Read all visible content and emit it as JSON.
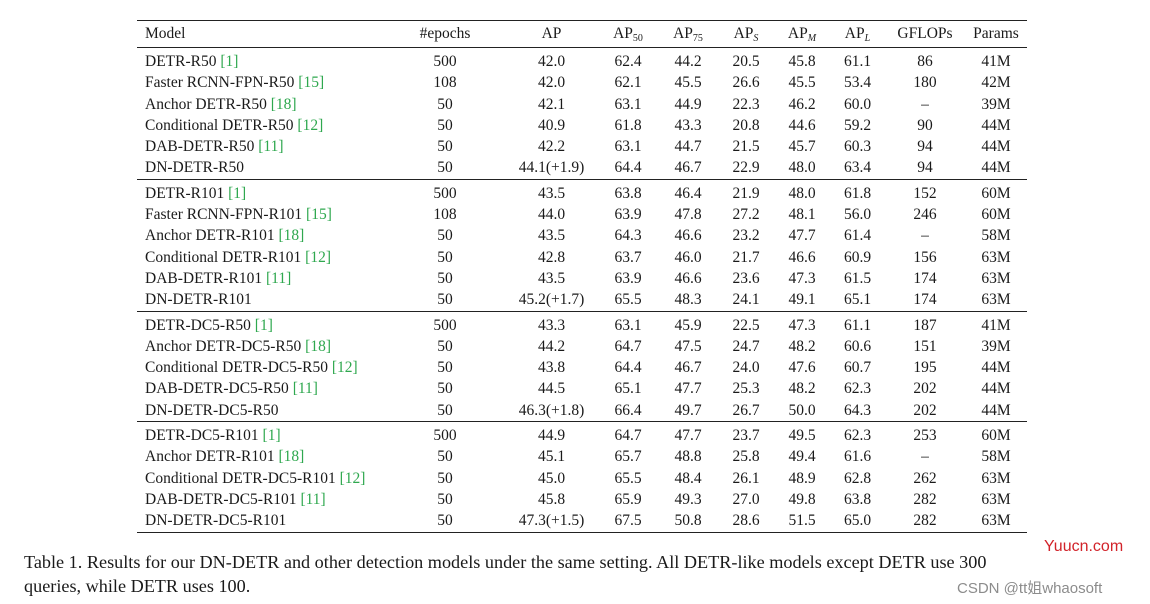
{
  "table": {
    "headers": {
      "model": "Model",
      "epochs": "#epochs",
      "ap": "AP",
      "ap50": "AP",
      "ap50_sub": "50",
      "ap75": "AP",
      "ap75_sub": "75",
      "aps": "AP",
      "aps_sub": "S",
      "apm": "AP",
      "apm_sub": "M",
      "apl": "AP",
      "apl_sub": "L",
      "gflops": "GFLOPs",
      "params": "Params"
    },
    "groups": [
      {
        "rows": [
          {
            "model": "DETR-R50 ",
            "ref": "[1]",
            "epochs": "500",
            "ap": "42.0",
            "ap50": "62.4",
            "ap75": "44.2",
            "aps": "20.5",
            "apm": "45.8",
            "apl": "61.1",
            "gflops": "86",
            "params": "41M"
          },
          {
            "model": "Faster RCNN-FPN-R50 ",
            "ref": "[15]",
            "epochs": "108",
            "ap": "42.0",
            "ap50": "62.1",
            "ap75": "45.5",
            "aps": "26.6",
            "apm": "45.5",
            "apl": "53.4",
            "gflops": "180",
            "params": "42M"
          },
          {
            "model": "Anchor DETR-R50 ",
            "ref": "[18]",
            "epochs": "50",
            "ap": "42.1",
            "ap50": "63.1",
            "ap75": "44.9",
            "aps": "22.3",
            "apm": "46.2",
            "apl": "60.0",
            "gflops": "–",
            "params": "39M"
          },
          {
            "model": "Conditional DETR-R50 ",
            "ref": "[12]",
            "epochs": "50",
            "ap": "40.9",
            "ap50": "61.8",
            "ap75": "43.3",
            "aps": "20.8",
            "apm": "44.6",
            "apl": "59.2",
            "gflops": "90",
            "params": "44M"
          },
          {
            "model": "DAB-DETR-R50 ",
            "ref": "[11]",
            "epochs": "50",
            "ap": "42.2",
            "ap50": "63.1",
            "ap75": "44.7",
            "aps": "21.5",
            "apm": "45.7",
            "apl": "60.3",
            "gflops": "94",
            "params": "44M"
          },
          {
            "model": "DN-DETR-R50",
            "ref": "",
            "epochs": "50",
            "ap": "44.1(+1.9)",
            "ap50": "64.4",
            "ap75": "46.7",
            "aps": "22.9",
            "apm": "48.0",
            "apl": "63.4",
            "gflops": "94",
            "params": "44M"
          }
        ]
      },
      {
        "rows": [
          {
            "model": "DETR-R101 ",
            "ref": "[1]",
            "epochs": "500",
            "ap": "43.5",
            "ap50": "63.8",
            "ap75": "46.4",
            "aps": "21.9",
            "apm": "48.0",
            "apl": "61.8",
            "gflops": "152",
            "params": "60M"
          },
          {
            "model": "Faster RCNN-FPN-R101 ",
            "ref": "[15]",
            "epochs": "108",
            "ap": "44.0",
            "ap50": "63.9",
            "ap75": "47.8",
            "aps": "27.2",
            "apm": "48.1",
            "apl": "56.0",
            "gflops": "246",
            "params": "60M"
          },
          {
            "model": "Anchor DETR-R101 ",
            "ref": "[18]",
            "epochs": "50",
            "ap": "43.5",
            "ap50": "64.3",
            "ap75": "46.6",
            "aps": "23.2",
            "apm": "47.7",
            "apl": "61.4",
            "gflops": "–",
            "params": "58M"
          },
          {
            "model": "Conditional DETR-R101 ",
            "ref": "[12]",
            "epochs": "50",
            "ap": "42.8",
            "ap50": "63.7",
            "ap75": "46.0",
            "aps": "21.7",
            "apm": "46.6",
            "apl": "60.9",
            "gflops": "156",
            "params": "63M"
          },
          {
            "model": "DAB-DETR-R101 ",
            "ref": "[11]",
            "epochs": "50",
            "ap": "43.5",
            "ap50": "63.9",
            "ap75": "46.6",
            "aps": "23.6",
            "apm": "47.3",
            "apl": "61.5",
            "gflops": "174",
            "params": "63M"
          },
          {
            "model": "DN-DETR-R101",
            "ref": "",
            "epochs": "50",
            "ap": "45.2(+1.7)",
            "ap50": "65.5",
            "ap75": "48.3",
            "aps": "24.1",
            "apm": "49.1",
            "apl": "65.1",
            "gflops": "174",
            "params": "63M"
          }
        ]
      },
      {
        "rows": [
          {
            "model": "DETR-DC5-R50 ",
            "ref": "[1]",
            "epochs": "500",
            "ap": "43.3",
            "ap50": "63.1",
            "ap75": "45.9",
            "aps": "22.5",
            "apm": "47.3",
            "apl": "61.1",
            "gflops": "187",
            "params": "41M"
          },
          {
            "model": "Anchor DETR-DC5-R50 ",
            "ref": "[18]",
            "epochs": "50",
            "ap": "44.2",
            "ap50": "64.7",
            "ap75": "47.5",
            "aps": "24.7",
            "apm": "48.2",
            "apl": "60.6",
            "gflops": "151",
            "params": "39M"
          },
          {
            "model": "Conditional DETR-DC5-R50 ",
            "ref": "[12]",
            "epochs": "50",
            "ap": "43.8",
            "ap50": "64.4",
            "ap75": "46.7",
            "aps": "24.0",
            "apm": "47.6",
            "apl": "60.7",
            "gflops": "195",
            "params": "44M"
          },
          {
            "model": "DAB-DETR-DC5-R50 ",
            "ref": "[11]",
            "epochs": "50",
            "ap": "44.5",
            "ap50": "65.1",
            "ap75": "47.7",
            "aps": "25.3",
            "apm": "48.2",
            "apl": "62.3",
            "gflops": "202",
            "params": "44M"
          },
          {
            "model": "DN-DETR-DC5-R50",
            "ref": "",
            "epochs": "50",
            "ap": "46.3(+1.8)",
            "ap50": "66.4",
            "ap75": "49.7",
            "aps": "26.7",
            "apm": "50.0",
            "apl": "64.3",
            "gflops": "202",
            "params": "44M"
          }
        ]
      },
      {
        "rows": [
          {
            "model": "DETR-DC5-R101 ",
            "ref": "[1]",
            "epochs": "500",
            "ap": "44.9",
            "ap50": "64.7",
            "ap75": "47.7",
            "aps": "23.7",
            "apm": "49.5",
            "apl": "62.3",
            "gflops": "253",
            "params": "60M"
          },
          {
            "model": "Anchor DETR-R101 ",
            "ref": "[18]",
            "epochs": "50",
            "ap": "45.1",
            "ap50": "65.7",
            "ap75": "48.8",
            "aps": "25.8",
            "apm": "49.4",
            "apl": "61.6",
            "gflops": "–",
            "params": "58M"
          },
          {
            "model": "Conditional DETR-DC5-R101 ",
            "ref": "[12]",
            "epochs": "50",
            "ap": "45.0",
            "ap50": "65.5",
            "ap75": "48.4",
            "aps": "26.1",
            "apm": "48.9",
            "apl": "62.8",
            "gflops": "262",
            "params": "63M"
          },
          {
            "model": "DAB-DETR-DC5-R101 ",
            "ref": "[11]",
            "epochs": "50",
            "ap": "45.8",
            "ap50": "65.9",
            "ap75": "49.3",
            "aps": "27.0",
            "apm": "49.8",
            "apl": "63.8",
            "gflops": "282",
            "params": "63M"
          },
          {
            "model": "DN-DETR-DC5-R101",
            "ref": "",
            "epochs": "50",
            "ap": "47.3(+1.5)",
            "ap50": "67.5",
            "ap75": "50.8",
            "aps": "28.6",
            "apm": "51.5",
            "apl": "65.0",
            "gflops": "282",
            "params": "63M"
          }
        ]
      }
    ]
  },
  "caption": {
    "line1": "Table 1.  Results for our DN-DETR and other detection models under the same setting.  All DETR-like models except DETR use 300",
    "line2": "queries, while DETR uses 100."
  },
  "watermarks": {
    "site": "Yuucn.com",
    "csdn": "CSDN @tt姐whaosoft"
  },
  "colors": {
    "reference_link": "#2fa84f",
    "watermark_site": "#d2232a",
    "watermark_csdn": "#8c8c8c"
  }
}
